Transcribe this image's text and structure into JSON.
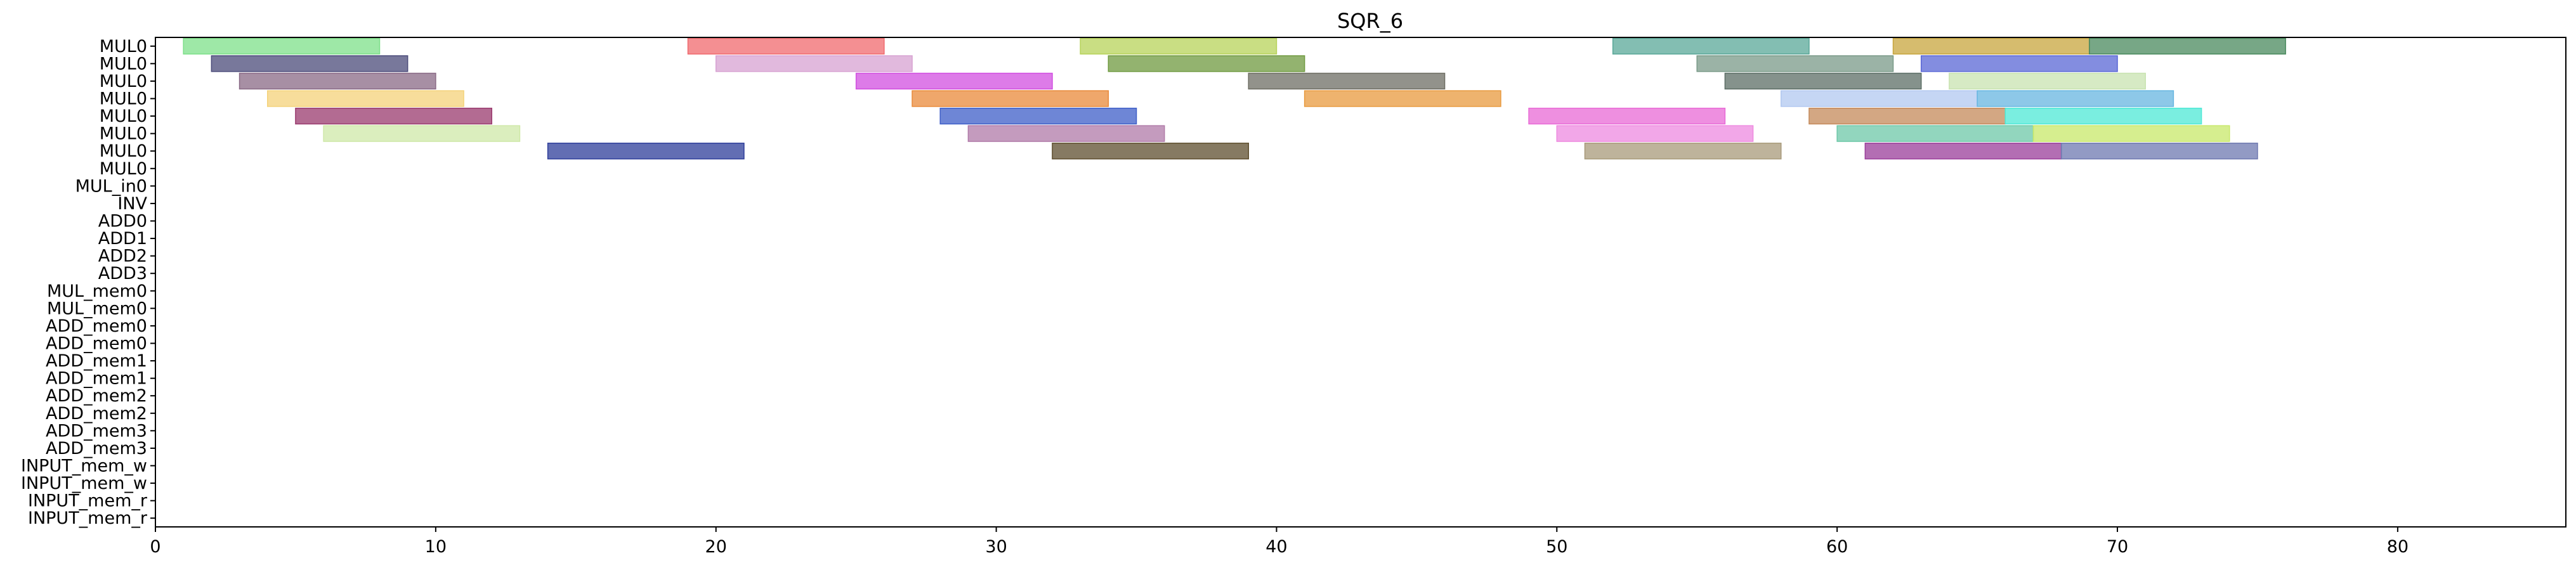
{
  "chart_data": {
    "type": "gantt",
    "title": "SQR_6",
    "xlim": [
      0,
      86
    ],
    "xticks": [
      0,
      10,
      20,
      30,
      40,
      50,
      60,
      70,
      80
    ],
    "rows": [
      "MUL0",
      "MUL0",
      "MUL0",
      "MUL0",
      "MUL0",
      "MUL0",
      "MUL0",
      "MUL0",
      "MUL_in0",
      "INV",
      "ADD0",
      "ADD1",
      "ADD2",
      "ADD3",
      "MUL_mem0",
      "MUL_mem0",
      "ADD_mem0",
      "ADD_mem0",
      "ADD_mem1",
      "ADD_mem1",
      "ADD_mem2",
      "ADD_mem2",
      "ADD_mem3",
      "ADD_mem3",
      "INPUT_mem_w",
      "INPUT_mem_w",
      "INPUT_mem_r",
      "INPUT_mem_r"
    ],
    "tasks": [
      {
        "row": 0,
        "start": 1,
        "end": 8,
        "color": "#7ee08a"
      },
      {
        "row": 0,
        "start": 19,
        "end": 26,
        "color": "#f06a6e"
      },
      {
        "row": 0,
        "start": 33,
        "end": 40,
        "color": "#b7d35a"
      },
      {
        "row": 0,
        "start": 52,
        "end": 59,
        "color": "#5aa898"
      },
      {
        "row": 0,
        "start": 62,
        "end": 69,
        "color": "#c8a53e"
      },
      {
        "row": 0,
        "start": 69,
        "end": 76,
        "color": "#4a8a5e"
      },
      {
        "row": 1,
        "start": 2,
        "end": 9,
        "color": "#4b4b7a"
      },
      {
        "row": 1,
        "start": 20,
        "end": 27,
        "color": "#d7a2d2"
      },
      {
        "row": 1,
        "start": 34,
        "end": 41,
        "color": "#6f9a3f"
      },
      {
        "row": 1,
        "start": 55,
        "end": 62,
        "color": "#7a9a88"
      },
      {
        "row": 1,
        "start": 63,
        "end": 70,
        "color": "#5a67d6"
      },
      {
        "row": 2,
        "start": 3,
        "end": 10,
        "color": "#8a6a86"
      },
      {
        "row": 2,
        "start": 25,
        "end": 32,
        "color": "#d14fe0"
      },
      {
        "row": 2,
        "start": 39,
        "end": 46,
        "color": "#6e6e64"
      },
      {
        "row": 2,
        "start": 56,
        "end": 63,
        "color": "#5c6e66"
      },
      {
        "row": 2,
        "start": 64,
        "end": 71,
        "color": "#c8e3b0"
      },
      {
        "row": 3,
        "start": 4,
        "end": 11,
        "color": "#f4d27a"
      },
      {
        "row": 3,
        "start": 27,
        "end": 34,
        "color": "#e98a3a"
      },
      {
        "row": 3,
        "start": 41,
        "end": 48,
        "color": "#e89a3e"
      },
      {
        "row": 3,
        "start": 58,
        "end": 65,
        "color": "#b2c8f0"
      },
      {
        "row": 3,
        "start": 65,
        "end": 72,
        "color": "#67b6e0"
      },
      {
        "row": 4,
        "start": 5,
        "end": 12,
        "color": "#9a3a6e"
      },
      {
        "row": 4,
        "start": 28,
        "end": 35,
        "color": "#3e5ec8"
      },
      {
        "row": 4,
        "start": 49,
        "end": 56,
        "color": "#e86ad6"
      },
      {
        "row": 4,
        "start": 59,
        "end": 66,
        "color": "#c4895a"
      },
      {
        "row": 4,
        "start": 66,
        "end": 73,
        "color": "#4ee8d6"
      },
      {
        "row": 5,
        "start": 6,
        "end": 13,
        "color": "#cfe8a8"
      },
      {
        "row": 5,
        "start": 29,
        "end": 36,
        "color": "#b07aa8"
      },
      {
        "row": 5,
        "start": 50,
        "end": 57,
        "color": "#ee8ae0"
      },
      {
        "row": 5,
        "start": 60,
        "end": 67,
        "color": "#6ec8a8"
      },
      {
        "row": 5,
        "start": 67,
        "end": 74,
        "color": "#c8e86a"
      },
      {
        "row": 6,
        "start": 14,
        "end": 21,
        "color": "#2e3e9a"
      },
      {
        "row": 6,
        "start": 32,
        "end": 39,
        "color": "#5e4e2e"
      },
      {
        "row": 6,
        "start": 51,
        "end": 58,
        "color": "#a89a7a"
      },
      {
        "row": 6,
        "start": 61,
        "end": 68,
        "color": "#9a3e9a"
      },
      {
        "row": 6,
        "start": 68,
        "end": 75,
        "color": "#6e78b0"
      }
    ]
  }
}
